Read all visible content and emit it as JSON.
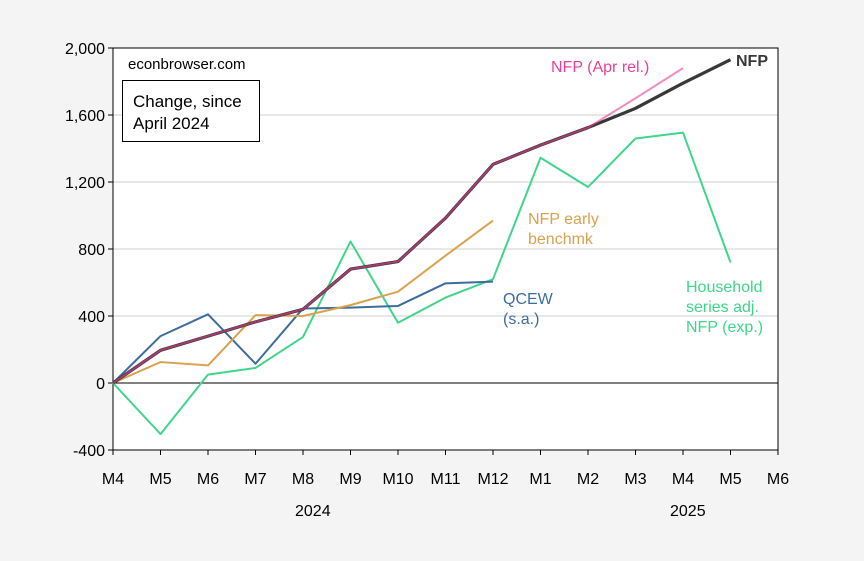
{
  "chart_data": {
    "type": "line",
    "annotations": [
      "econbrowser.com",
      "Change, since April 2024"
    ],
    "year_labels": [
      "2024",
      "2025"
    ],
    "categories": [
      "M4",
      "M5",
      "M6",
      "M7",
      "M8",
      "M9",
      "M10",
      "M11",
      "M12",
      "M1",
      "M2",
      "M3",
      "M4",
      "M5",
      "M6"
    ],
    "ylim": [
      -400,
      2000
    ],
    "yticks": [
      -400,
      0,
      400,
      800,
      {
        "value": 1200,
        "label": "1,200"
      },
      {
        "value": 1600,
        "label": "1,600"
      },
      {
        "value": 2000,
        "label": "2,000"
      }
    ],
    "grid": true,
    "series": [
      {
        "name": "Household series adj. NFP (exp.)",
        "color": "#3fd68a",
        "values": [
          0,
          -305,
          50,
          90,
          275,
          845,
          360,
          510,
          620,
          1345,
          1170,
          1460,
          1495,
          720,
          null
        ]
      },
      {
        "name": "QCEW (s.a.)",
        "color": "#3d6d9c",
        "values": [
          0,
          280,
          410,
          115,
          445,
          450,
          460,
          595,
          605,
          null,
          null,
          null,
          null,
          null,
          null
        ]
      },
      {
        "name": "NFP early benchmk",
        "color": "#d9a24e",
        "values": [
          0,
          125,
          105,
          405,
          400,
          465,
          545,
          760,
          970,
          null,
          null,
          null,
          null,
          null,
          null
        ]
      },
      {
        "name": "NFP",
        "color": "#383838",
        "values": [
          0,
          195,
          280,
          365,
          440,
          680,
          725,
          985,
          1305,
          1420,
          1525,
          1640,
          1790,
          1930,
          null
        ]
      },
      {
        "name": "NFP (Apr rel.)",
        "color": "#ec3f95",
        "values": [
          0,
          195,
          280,
          365,
          440,
          680,
          725,
          985,
          1305,
          1420,
          1525,
          1700,
          1880,
          null,
          null
        ]
      }
    ]
  }
}
